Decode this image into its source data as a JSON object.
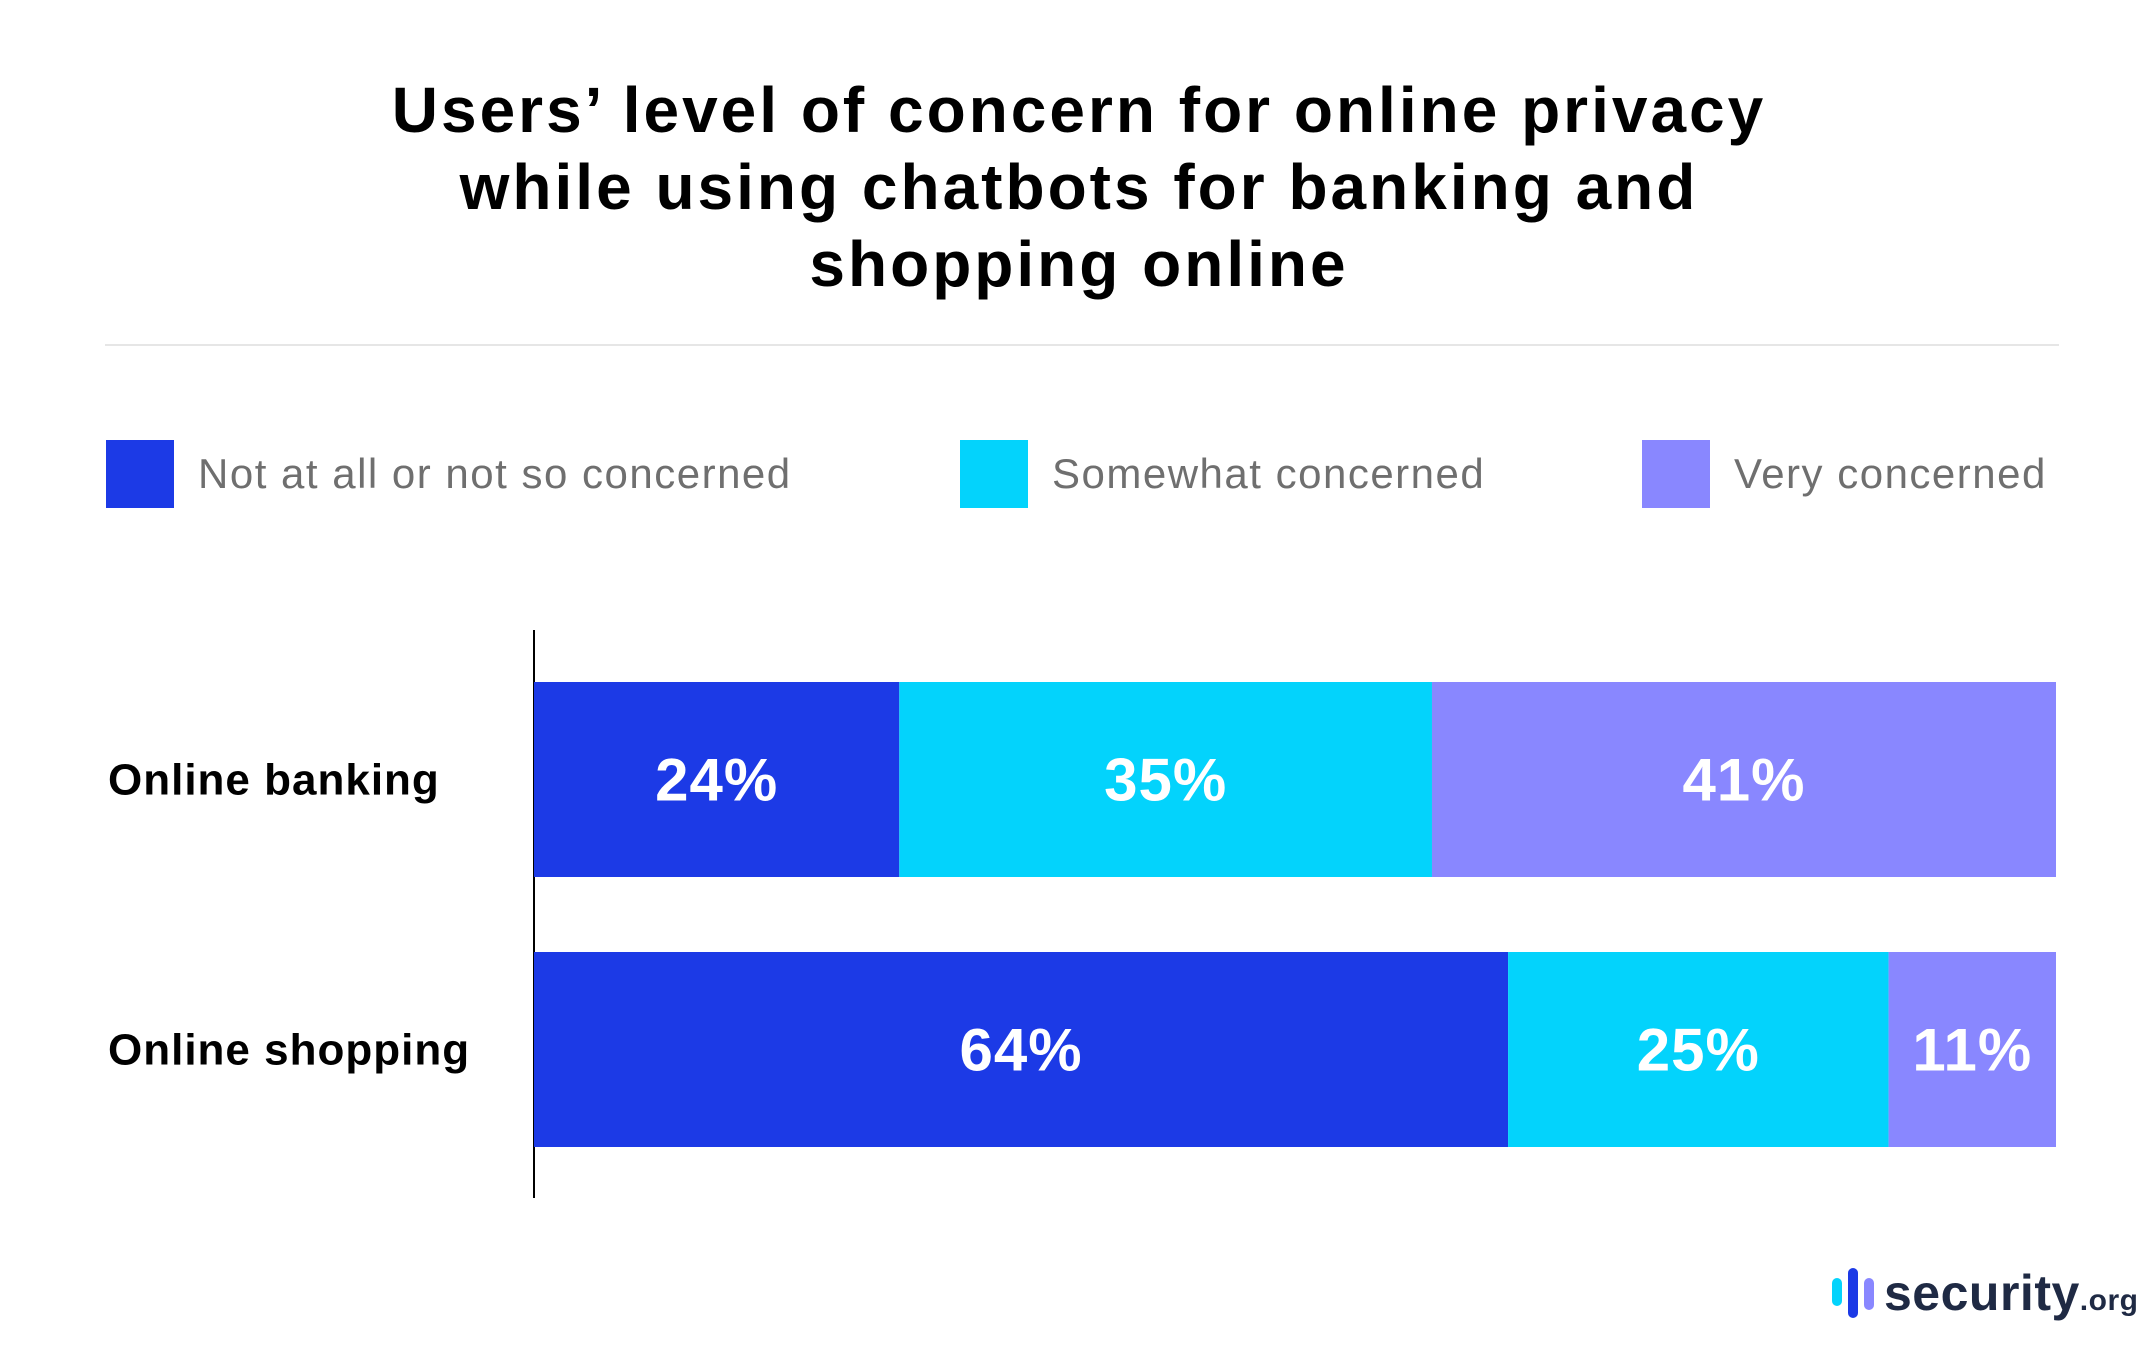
{
  "chart_data": {
    "type": "bar",
    "orientation": "horizontal",
    "stacked": true,
    "title_lines": [
      "Users’ level of concern for online privacy",
      "while using chatbots for banking and",
      "shopping online"
    ],
    "categories": [
      "Online banking",
      "Online shopping"
    ],
    "series": [
      {
        "name": "Not at all or not so concerned",
        "color": "#1c3ae6",
        "values": [
          24,
          64
        ],
        "labels": [
          "24%",
          "64%"
        ]
      },
      {
        "name": "Somewhat concerned",
        "color": "#03d3fc",
        "values": [
          35,
          25
        ],
        "labels": [
          "35%",
          "25%"
        ]
      },
      {
        "name": "Very concerned",
        "color": "#8987ff",
        "values": [
          41,
          11
        ],
        "labels": [
          "41%",
          "11%"
        ]
      }
    ],
    "xlim": [
      0,
      100
    ],
    "unit": "%",
    "grid": false,
    "legend_position": "top"
  },
  "logo": {
    "name": "security",
    "suffix": ".org",
    "icon": "bars-logo-icon",
    "colors": [
      "#03d3fc",
      "#1c3ae6",
      "#8987ff"
    ]
  }
}
